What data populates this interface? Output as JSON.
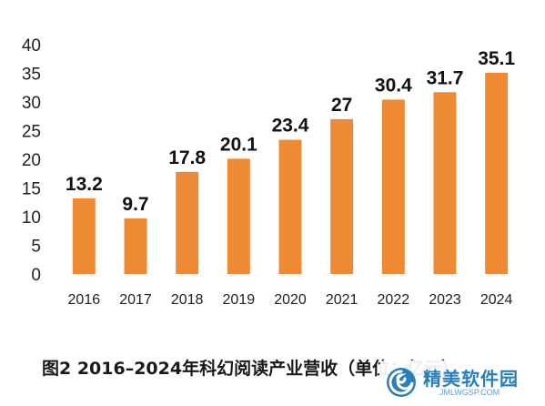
{
  "chart_data": {
    "type": "bar",
    "categories": [
      "2016",
      "2017",
      "2018",
      "2019",
      "2020",
      "2021",
      "2022",
      "2023",
      "2024"
    ],
    "values": [
      13.2,
      9.7,
      17.8,
      20.1,
      23.4,
      27,
      30.4,
      31.7,
      35.1
    ],
    "data_labels": [
      "13.2",
      "9.7",
      "17.8",
      "20.1",
      "23.4",
      "27",
      "30.4",
      "31.7",
      "35.1"
    ],
    "ylim": [
      0,
      40
    ],
    "yticks": [
      0,
      5,
      10,
      15,
      20,
      25,
      30,
      35,
      40
    ],
    "bar_color": "#ED8A33",
    "grid": false,
    "legend": "none"
  },
  "caption": "图2  2016–2024年科幻阅读产业营收（单位：亿元）",
  "watermark": {
    "title": "精美软件园",
    "url": "JMLWGSP.COM",
    "logo_icon": "swirl-logo-icon",
    "color": "#2a7fb8"
  }
}
